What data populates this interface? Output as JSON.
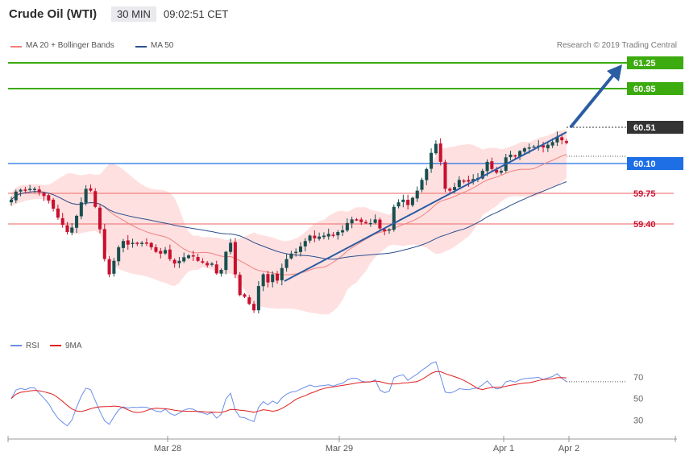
{
  "header": {
    "title": "Crude Oil (WTI)",
    "timeframe": "30 MIN",
    "time": "09:02:51 CET"
  },
  "legend": {
    "bb_label": "MA 20 + Bollinger Bands",
    "ma50_label": "MA 50",
    "credit": "Research © 2019 Trading Central"
  },
  "colors": {
    "bb_fill": "#ffd6d6",
    "ma20": "#f08080",
    "ma50": "#2c4f8e",
    "target": "#3cab0f",
    "resistance": "#1e6fe6",
    "support": "#f08080",
    "up": "#1a4f4f",
    "down": "#c8102e",
    "arrow": "#2a5da3",
    "rsi": "#6a8ee8",
    "rsi_ma": "#e02020"
  },
  "chart_data": [
    {
      "type": "candlestick",
      "instrument": "Crude Oil (WTI)",
      "interval": "30 MIN",
      "ylim": [
        58.5,
        61.4
      ],
      "x_ticks": [
        "Mar 28",
        "Mar 29",
        "Apr 1",
        "Apr 2"
      ],
      "close": [
        59.88,
        59.97,
        59.99,
        59.98,
        60.0,
        60.0,
        59.96,
        59.92,
        59.87,
        59.78,
        59.68,
        59.6,
        59.52,
        59.57,
        59.7,
        59.85,
        60.0,
        59.98,
        59.8,
        59.55,
        59.22,
        59.05,
        59.2,
        59.35,
        59.42,
        59.38,
        59.4,
        59.39,
        59.4,
        59.39,
        59.35,
        59.3,
        59.28,
        59.32,
        59.22,
        59.17,
        59.2,
        59.24,
        59.26,
        59.25,
        59.2,
        59.18,
        59.15,
        59.17,
        59.06,
        59.1,
        59.3,
        59.4,
        59.05,
        58.82,
        58.8,
        58.72,
        58.65,
        58.92,
        59.05,
        58.96,
        59.05,
        58.98,
        59.12,
        59.22,
        59.28,
        59.3,
        59.36,
        59.42,
        59.48,
        59.45,
        59.47,
        59.48,
        59.5,
        59.48,
        59.52,
        59.54,
        59.62,
        59.66,
        59.66,
        59.63,
        59.62,
        59.62,
        59.66,
        59.56,
        59.53,
        59.55,
        59.8,
        59.85,
        59.88,
        59.82,
        59.9,
        59.98,
        60.1,
        60.22,
        60.4,
        60.5,
        60.3,
        60.0,
        59.98,
        60.02,
        60.1,
        60.09,
        60.08,
        60.11,
        60.12,
        60.2,
        60.3,
        60.22,
        60.18,
        60.2,
        60.35,
        60.38,
        60.36,
        60.42,
        60.45,
        60.46,
        60.47,
        60.48,
        60.46,
        60.49,
        60.52,
        60.58,
        60.54,
        60.51
      ],
      "series": [
        {
          "name": "MA 20 + Bollinger Bands",
          "values": []
        },
        {
          "name": "MA 50",
          "values": []
        }
      ],
      "levels": [
        {
          "value": 61.25,
          "label": "61.25"
        },
        {
          "value": 60.95,
          "label": "60.95"
        },
        {
          "value": 60.51,
          "label": "60.51"
        },
        {
          "value": 60.1,
          "label": "60.10"
        },
        {
          "value": 59.75,
          "label": "59.75"
        },
        {
          "value": 59.4,
          "label": "59.40"
        }
      ]
    },
    {
      "type": "line",
      "series": [
        {
          "name": "RSI",
          "values": []
        },
        {
          "name": "9MA",
          "values": []
        }
      ],
      "y_ticks": [
        "70",
        "50",
        "30"
      ],
      "ylim": [
        22,
        82
      ]
    }
  ]
}
